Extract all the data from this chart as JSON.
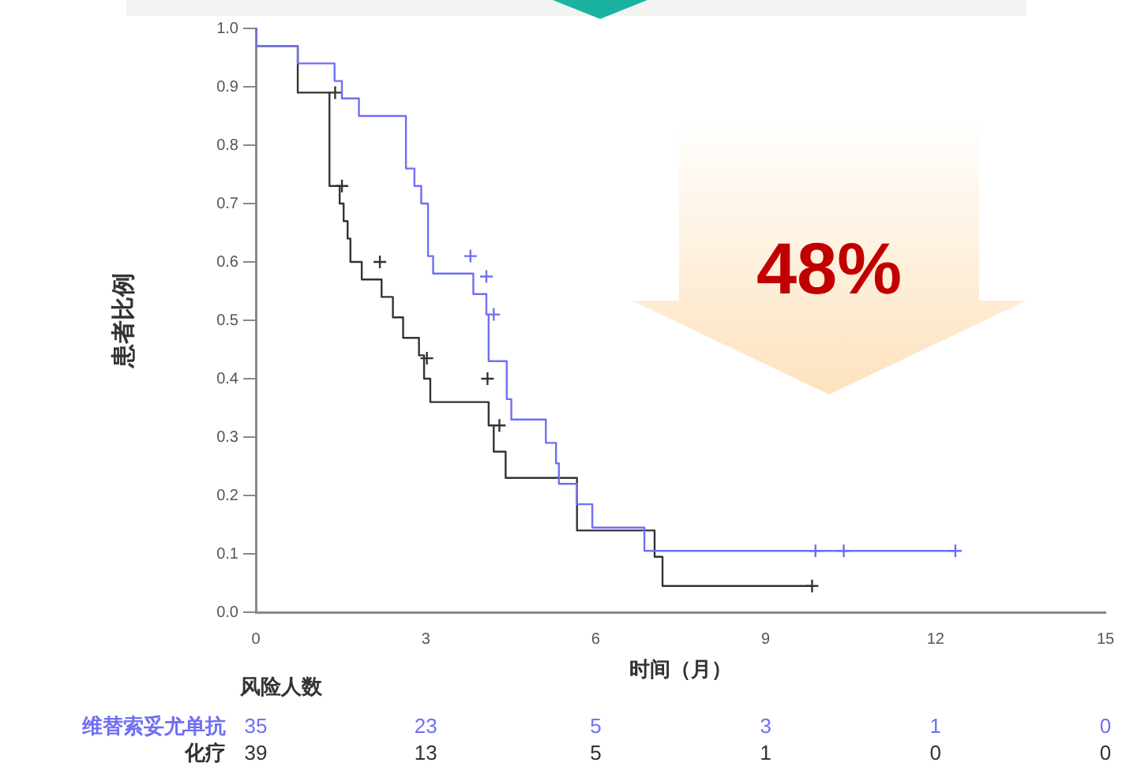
{
  "chart_data": {
    "type": "step",
    "ylabel": "患者比例",
    "xlabel": "时间（月）",
    "xlim": [
      0,
      15
    ],
    "xticks": [
      0,
      3,
      6,
      9,
      12,
      15
    ],
    "ylim": [
      0,
      1
    ],
    "yticks": [
      {
        "value": 0,
        "label": "0.0"
      },
      0.1,
      0.2,
      0.3,
      0.4,
      0.5,
      0.6,
      0.7,
      0.8,
      0.9,
      {
        "value": 1,
        "label": "1.0"
      }
    ],
    "grid": false,
    "legend": false,
    "series": [
      {
        "name": "维替索妥尤单抗",
        "color": "#6f6ff5",
        "marker": "none",
        "x": [
          0,
          0.74,
          1.39,
          1.52,
          1.82,
          2.65,
          2.8,
          2.92,
          3.04,
          3.13,
          3.84,
          4.07,
          4.11,
          4.43,
          4.51,
          5.12,
          5.3,
          5.35,
          5.67,
          5.94,
          6.86,
          7.68,
          12.35
        ],
        "values": [
          1,
          0.97,
          0.94,
          0.91,
          0.88,
          0.85,
          0.76,
          0.73,
          0.7,
          0.61,
          0.58,
          0.545,
          0.51,
          0.43,
          0.365,
          0.33,
          0.29,
          0.255,
          0.22,
          0.185,
          0.145,
          0.105,
          0.105
        ]
      },
      {
        "name": "化疗",
        "color": "#333333",
        "marker": "none",
        "x": [
          0,
          0.74,
          1.3,
          1.48,
          1.55,
          1.62,
          1.67,
          1.87,
          2.22,
          2.42,
          2.6,
          2.88,
          2.97,
          3.08,
          4.11,
          4.2,
          4.41,
          5.67,
          7.04,
          7.18,
          7.41,
          9.82
        ],
        "values": [
          1,
          0.97,
          0.89,
          0.73,
          0.7,
          0.67,
          0.64,
          0.6,
          0.57,
          0.54,
          0.505,
          0.47,
          0.44,
          0.4,
          0.36,
          0.32,
          0.275,
          0.23,
          0.14,
          0.095,
          0.045,
          0.045
        ]
      },
      {
        "type": "scatter",
        "color": "#6f6ff5",
        "marker": "cross",
        "x": [
          3.79,
          4.07,
          4.2,
          9.88,
          10.38,
          12.35
        ],
        "values": [
          0.61,
          0.575,
          0.51,
          0.105,
          0.105,
          0.105
        ]
      },
      {
        "type": "scatter",
        "color": "#333333",
        "marker": "cross",
        "x": [
          1.4,
          1.52,
          2.19,
          3.02,
          4.09,
          4.3,
          9.82
        ],
        "values": [
          0.89,
          0.73,
          0.6,
          0.435,
          0.4,
          0.32,
          0.045
        ]
      }
    ],
    "annotations": [
      "48%",
      "风险人数",
      "35",
      "23",
      "5",
      "3",
      "1",
      "0",
      "39",
      "13",
      "5",
      "1",
      "0",
      "0"
    ]
  }
}
